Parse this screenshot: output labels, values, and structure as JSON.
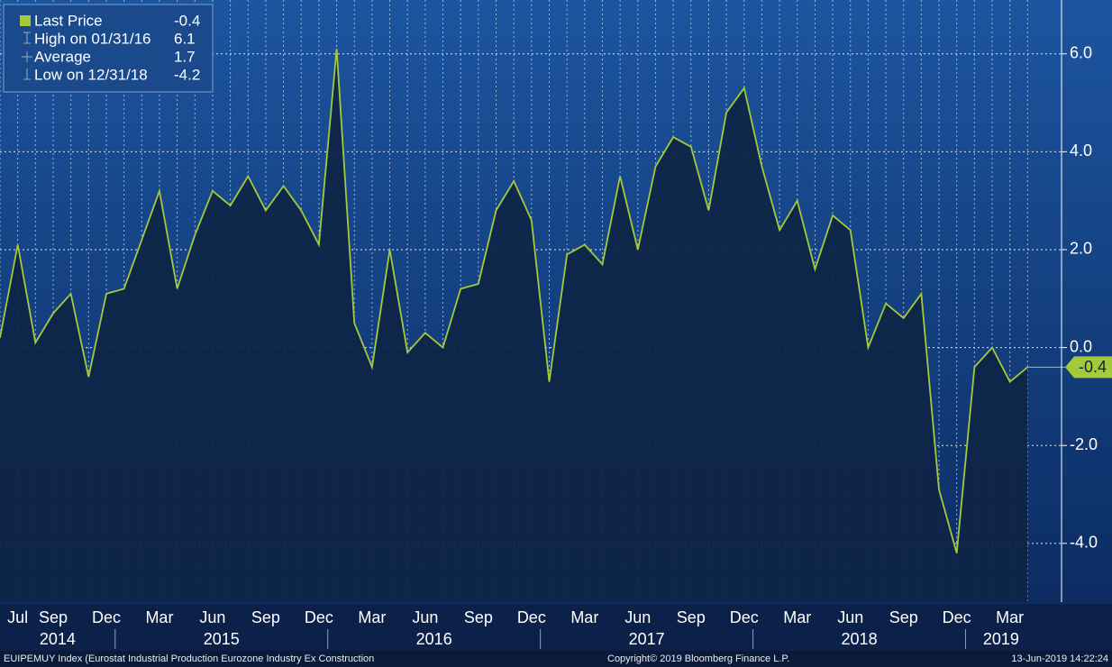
{
  "chart_data": {
    "type": "line",
    "x": [
      "2014-06",
      "2014-07",
      "2014-08",
      "2014-09",
      "2014-10",
      "2014-11",
      "2014-12",
      "2015-01",
      "2015-02",
      "2015-03",
      "2015-04",
      "2015-05",
      "2015-06",
      "2015-07",
      "2015-08",
      "2015-09",
      "2015-10",
      "2015-11",
      "2015-12",
      "2016-01",
      "2016-02",
      "2016-03",
      "2016-04",
      "2016-05",
      "2016-06",
      "2016-07",
      "2016-08",
      "2016-09",
      "2016-10",
      "2016-11",
      "2016-12",
      "2017-01",
      "2017-02",
      "2017-03",
      "2017-04",
      "2017-05",
      "2017-06",
      "2017-07",
      "2017-08",
      "2017-09",
      "2017-10",
      "2017-11",
      "2017-12",
      "2018-01",
      "2018-02",
      "2018-03",
      "2018-04",
      "2018-05",
      "2018-06",
      "2018-07",
      "2018-08",
      "2018-09",
      "2018-10",
      "2018-11",
      "2018-12",
      "2019-01",
      "2019-02",
      "2019-03",
      "2019-04"
    ],
    "series": [
      {
        "name": "Last Price",
        "color": "#a4c93a",
        "values": [
          0.2,
          2.1,
          0.1,
          0.7,
          1.1,
          -0.6,
          1.1,
          1.2,
          2.2,
          3.2,
          1.2,
          2.3,
          3.2,
          2.9,
          3.5,
          2.8,
          3.3,
          2.8,
          2.1,
          6.1,
          0.5,
          -0.4,
          2.0,
          -0.1,
          0.3,
          0.0,
          1.2,
          1.3,
          2.8,
          3.4,
          2.6,
          -0.7,
          1.9,
          2.1,
          1.7,
          3.5,
          2.0,
          3.7,
          4.3,
          4.1,
          2.8,
          4.8,
          5.3,
          3.7,
          2.4,
          3.0,
          1.6,
          2.7,
          2.4,
          0.0,
          0.9,
          0.6,
          1.1,
          -2.9,
          -4.2,
          -0.4,
          0.0,
          -0.7,
          -0.4
        ]
      }
    ],
    "xlim": [
      "2014-06",
      "2019-05"
    ],
    "xticks": [
      {
        "value": "2014-07",
        "label": "Jul"
      },
      {
        "value": "2014-09",
        "label": "Sep"
      },
      {
        "value": "2014-12",
        "label": "Dec"
      },
      {
        "value": "2015-03",
        "label": "Mar"
      },
      {
        "value": "2015-06",
        "label": "Jun"
      },
      {
        "value": "2015-09",
        "label": "Sep"
      },
      {
        "value": "2015-12",
        "label": "Dec"
      },
      {
        "value": "2016-03",
        "label": "Mar"
      },
      {
        "value": "2016-06",
        "label": "Jun"
      },
      {
        "value": "2016-09",
        "label": "Sep"
      },
      {
        "value": "2016-12",
        "label": "Dec"
      },
      {
        "value": "2017-03",
        "label": "Mar"
      },
      {
        "value": "2017-06",
        "label": "Jun"
      },
      {
        "value": "2017-09",
        "label": "Sep"
      },
      {
        "value": "2017-12",
        "label": "Dec"
      },
      {
        "value": "2018-03",
        "label": "Mar"
      },
      {
        "value": "2018-06",
        "label": "Jun"
      },
      {
        "value": "2018-09",
        "label": "Sep"
      },
      {
        "value": "2018-12",
        "label": "Dec"
      },
      {
        "value": "2019-03",
        "label": "Mar"
      }
    ],
    "year_ticks": [
      "2014",
      "2015",
      "2016",
      "2017",
      "2018",
      "2019"
    ],
    "ylim": [
      -5.2,
      7.1
    ],
    "yticks": [
      {
        "value": 6,
        "label": "6.0"
      },
      {
        "value": 4,
        "label": "4.0"
      },
      {
        "value": 2,
        "label": "2.0"
      },
      {
        "value": 0,
        "label": "0.0"
      },
      {
        "value": -2,
        "label": "-2.0"
      },
      {
        "value": -4,
        "label": "-4.0"
      }
    ],
    "grid": true,
    "legend": {
      "position": "upper left",
      "entries": [
        {
          "label": "Last Price",
          "value": -0.4
        },
        {
          "label": "High on 01/31/16",
          "value": 6.1
        },
        {
          "label": "Average",
          "value": 1.7
        },
        {
          "label": "Low on 12/31/18",
          "value": -4.2
        }
      ]
    }
  },
  "footer": {
    "index": "EUIPEMUY Index (Eurostat Industrial Production Eurozone Industry Ex Construction",
    "copyright": "Copyright© 2019 Bloomberg Finance L.P.",
    "timestamp": "13-Jun-2019 14:22:24"
  }
}
